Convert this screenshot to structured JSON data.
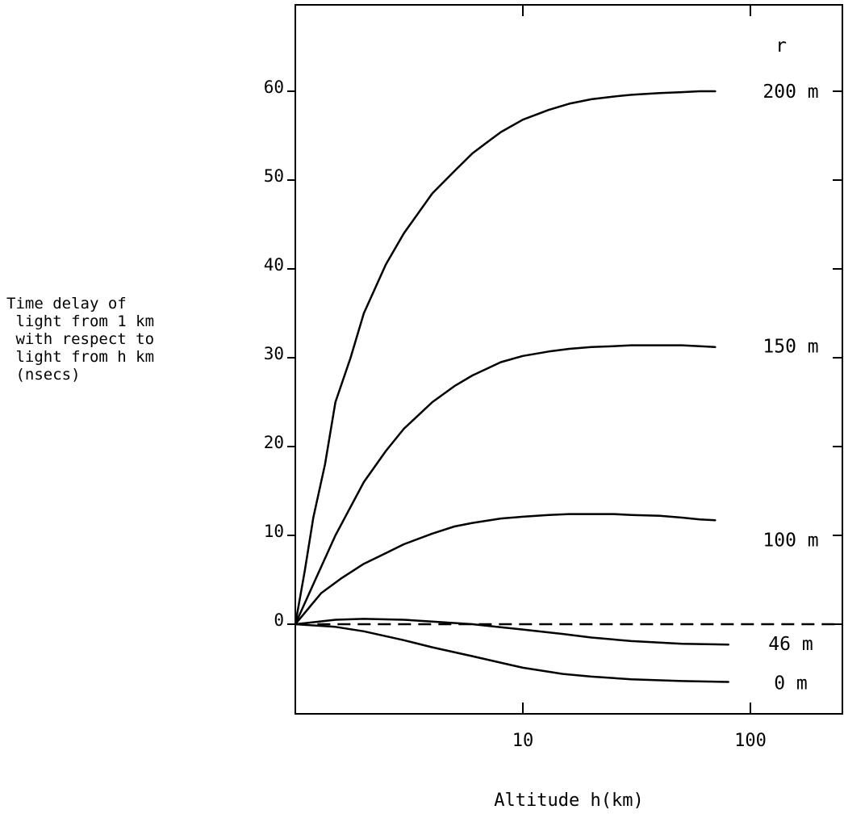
{
  "chart_data": {
    "type": "line",
    "title": "",
    "xlabel": "Altitude h(km)",
    "ylabel_lines": [
      "Time delay of",
      " light from 1 km",
      " with respect to",
      " light from h km",
      " (nsecs)"
    ],
    "x_scale": "log",
    "xlim": [
      1,
      250
    ],
    "ylim": [
      -9.5,
      69
    ],
    "x_tick_labels": [
      "10",
      "100"
    ],
    "x_ticks": [
      10,
      100
    ],
    "y_tick_labels": [
      "0",
      "10",
      "20",
      "30",
      "40",
      "50",
      "60"
    ],
    "y_ticks": [
      0,
      10,
      20,
      30,
      40,
      50,
      60
    ],
    "legend_title": "r",
    "grid": false,
    "reference_line": {
      "y": 0,
      "style": "dashed"
    },
    "series": [
      {
        "name": "200 m",
        "x": [
          1,
          1.1,
          1.2,
          1.35,
          1.5,
          1.75,
          2,
          2.5,
          3,
          4,
          5,
          6,
          7,
          8,
          10,
          13,
          16,
          20,
          25,
          30,
          40,
          50,
          60,
          70
        ],
        "y": [
          0,
          6,
          12,
          18,
          25,
          30,
          35,
          40.5,
          44,
          48.5,
          51,
          53,
          54.3,
          55.4,
          56.8,
          57.9,
          58.6,
          59.1,
          59.4,
          59.6,
          59.8,
          59.9,
          60,
          60
        ]
      },
      {
        "name": "150 m",
        "x": [
          1,
          1.2,
          1.5,
          2,
          2.5,
          3,
          4,
          5,
          6,
          8,
          10,
          13,
          16,
          20,
          25,
          30,
          40,
          50,
          60,
          70
        ],
        "y": [
          0,
          4.5,
          10,
          16,
          19.5,
          22,
          25,
          26.8,
          28,
          29.5,
          30.2,
          30.7,
          31,
          31.2,
          31.3,
          31.4,
          31.4,
          31.4,
          31.3,
          31.2
        ]
      },
      {
        "name": "100 m",
        "x": [
          1,
          1.3,
          1.6,
          2,
          2.5,
          3,
          4,
          5,
          6,
          8,
          10,
          13,
          16,
          20,
          25,
          30,
          40,
          50,
          60,
          70
        ],
        "y": [
          0,
          3.5,
          5.2,
          6.8,
          8,
          9,
          10.2,
          11,
          11.4,
          11.9,
          12.1,
          12.3,
          12.4,
          12.4,
          12.4,
          12.3,
          12.2,
          12,
          11.8,
          11.7
        ]
      },
      {
        "name": "46 m",
        "x": [
          1,
          1.5,
          2,
          3,
          4,
          6,
          10,
          15,
          20,
          30,
          50,
          80
        ],
        "y": [
          0,
          0.5,
          0.6,
          0.5,
          0.3,
          0,
          -0.6,
          -1.1,
          -1.5,
          -1.9,
          -2.2,
          -2.3
        ]
      },
      {
        "name": "0 m",
        "x": [
          1,
          1.5,
          2,
          3,
          4,
          6,
          10,
          15,
          20,
          30,
          50,
          80
        ],
        "y": [
          0,
          -0.3,
          -0.8,
          -1.8,
          -2.6,
          -3.6,
          -4.9,
          -5.6,
          -5.9,
          -6.2,
          -6.4,
          -6.5
        ]
      }
    ]
  }
}
